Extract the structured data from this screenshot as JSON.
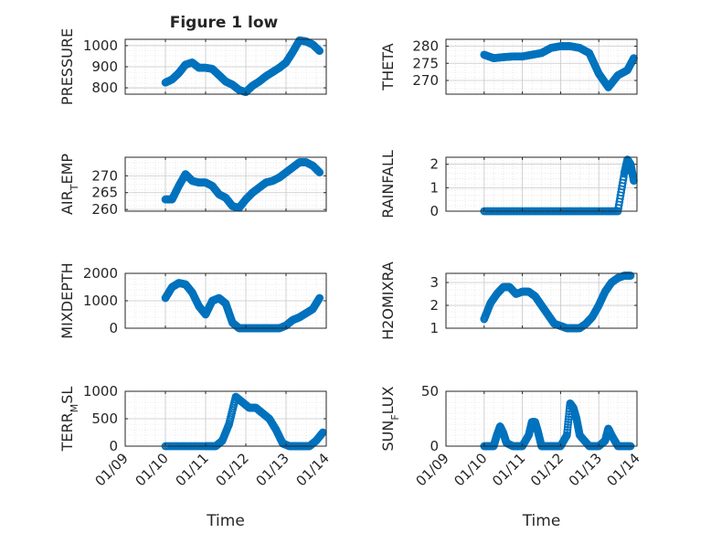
{
  "figure": {
    "title": "Figure 1 low",
    "x_tick_labels": [
      "01/09",
      "01/10",
      "01/11",
      "01/12",
      "01/13",
      "01/14"
    ],
    "x_label": "Time",
    "marker_color": "#0072bd"
  },
  "chart_data": [
    {
      "type": "scatter",
      "ylabel": "PRESSURE",
      "xlim": [
        "01/09",
        "01/14"
      ],
      "ylim": [
        770,
        1030
      ],
      "yticks": [
        800,
        900,
        1000
      ],
      "x": [
        "01/10 00:00",
        "01/10 04:00",
        "01/10 08:00",
        "01/10 12:00",
        "01/10 16:00",
        "01/10 20:00",
        "01/11 00:00",
        "01/11 04:00",
        "01/11 08:00",
        "01/11 12:00",
        "01/11 16:00",
        "01/11 20:00",
        "01/12 00:00",
        "01/12 04:00",
        "01/12 08:00",
        "01/12 12:00",
        "01/12 16:00",
        "01/12 20:00",
        "01/13 00:00",
        "01/13 04:00",
        "01/13 08:00",
        "01/13 12:00",
        "01/13 16:00",
        "01/13 20:00"
      ],
      "y": [
        825,
        840,
        870,
        910,
        920,
        895,
        895,
        890,
        860,
        830,
        815,
        790,
        780,
        810,
        830,
        855,
        875,
        895,
        920,
        970,
        1025,
        1020,
        1005,
        975
      ]
    },
    {
      "type": "scatter",
      "ylabel": "THETA",
      "xlim": [
        "01/09",
        "01/14"
      ],
      "ylim": [
        266,
        282
      ],
      "yticks": [
        270,
        275,
        280
      ],
      "x": [
        "01/10 00:00",
        "01/10 06:00",
        "01/10 12:00",
        "01/10 18:00",
        "01/11 00:00",
        "01/11 06:00",
        "01/11 12:00",
        "01/11 18:00",
        "01/12 00:00",
        "01/12 06:00",
        "01/12 12:00",
        "01/12 18:00",
        "01/13 00:00",
        "01/13 06:00",
        "01/13 12:00",
        "01/13 18:00",
        "01/13 22:00"
      ],
      "y": [
        277.5,
        276.5,
        276.8,
        277,
        277,
        277.5,
        278,
        279.5,
        280,
        280,
        279.5,
        278,
        272,
        268,
        271.5,
        273,
        276.5
      ]
    },
    {
      "type": "scatter",
      "ylabel": "AIR_TEMP",
      "xlim": [
        "01/09",
        "01/14"
      ],
      "ylim": [
        259.5,
        275.5
      ],
      "yticks": [
        260,
        265,
        270
      ],
      "x": [
        "01/10 00:00",
        "01/10 04:00",
        "01/10 08:00",
        "01/10 12:00",
        "01/10 16:00",
        "01/10 20:00",
        "01/11 00:00",
        "01/11 04:00",
        "01/11 08:00",
        "01/11 12:00",
        "01/11 16:00",
        "01/11 20:00",
        "01/12 00:00",
        "01/12 04:00",
        "01/12 08:00",
        "01/12 12:00",
        "01/12 16:00",
        "01/12 20:00",
        "01/13 00:00",
        "01/13 04:00",
        "01/13 08:00",
        "01/13 12:00",
        "01/13 16:00",
        "01/13 20:00"
      ],
      "y": [
        263,
        263,
        267,
        270.5,
        268.5,
        268,
        268,
        267,
        264.5,
        263.5,
        261,
        260.5,
        263,
        265,
        266.5,
        268,
        268.5,
        269.5,
        271,
        272.5,
        274,
        274,
        273,
        271
      ]
    },
    {
      "type": "scatter",
      "ylabel": "RAINFALL",
      "xlim": [
        "01/09",
        "01/14"
      ],
      "ylim": [
        0,
        2.3
      ],
      "yticks": [
        0,
        1,
        2
      ],
      "x": [
        "01/10 00:00",
        "01/10 12:00",
        "01/11 00:00",
        "01/11 12:00",
        "01/12 00:00",
        "01/12 12:00",
        "01/13 00:00",
        "01/13 12:00",
        "01/13 16:00",
        "01/13 18:00",
        "01/13 20:00",
        "01/13 22:00"
      ],
      "y": [
        0,
        0,
        0,
        0,
        0,
        0,
        0,
        0,
        1.6,
        2.2,
        2,
        1.3
      ]
    },
    {
      "type": "scatter",
      "ylabel": "MIXDEPTH",
      "xlim": [
        "01/09",
        "01/14"
      ],
      "ylim": [
        0,
        2000
      ],
      "yticks": [
        0,
        1000,
        2000
      ],
      "x": [
        "01/10 00:00",
        "01/10 04:00",
        "01/10 08:00",
        "01/10 12:00",
        "01/10 16:00",
        "01/10 20:00",
        "01/11 00:00",
        "01/11 04:00",
        "01/11 08:00",
        "01/11 12:00",
        "01/11 16:00",
        "01/11 20:00",
        "01/12 00:00",
        "01/12 04:00",
        "01/12 08:00",
        "01/12 12:00",
        "01/12 16:00",
        "01/12 20:00",
        "01/13 00:00",
        "01/13 04:00",
        "01/13 08:00",
        "01/13 12:00",
        "01/13 16:00",
        "01/13 20:00"
      ],
      "y": [
        1100,
        1500,
        1650,
        1600,
        1300,
        800,
        500,
        1000,
        1100,
        900,
        200,
        0,
        0,
        0,
        0,
        0,
        0,
        0,
        100,
        300,
        400,
        550,
        700,
        1100
      ]
    },
    {
      "type": "scatter",
      "ylabel": "H2OMIXRA",
      "xlim": [
        "01/09",
        "01/14"
      ],
      "ylim": [
        1,
        3.4
      ],
      "yticks": [
        1,
        2,
        3
      ],
      "x": [
        "01/10 00:00",
        "01/10 04:00",
        "01/10 08:00",
        "01/10 12:00",
        "01/10 16:00",
        "01/10 20:00",
        "01/11 00:00",
        "01/11 04:00",
        "01/11 08:00",
        "01/11 12:00",
        "01/11 16:00",
        "01/11 20:00",
        "01/12 00:00",
        "01/12 04:00",
        "01/12 08:00",
        "01/12 12:00",
        "01/12 16:00",
        "01/12 20:00",
        "01/13 00:00",
        "01/13 04:00",
        "01/13 08:00",
        "01/13 12:00",
        "01/13 16:00",
        "01/13 20:00"
      ],
      "y": [
        1.4,
        2.1,
        2.5,
        2.8,
        2.8,
        2.5,
        2.6,
        2.6,
        2.4,
        2,
        1.6,
        1.2,
        1.1,
        1,
        1,
        1,
        1.2,
        1.5,
        2,
        2.6,
        3,
        3.2,
        3.3,
        3.3
      ]
    },
    {
      "type": "scatter",
      "ylabel": "TERR_MSL",
      "xlim": [
        "01/09",
        "01/14"
      ],
      "ylim": [
        0,
        1000
      ],
      "yticks": [
        0,
        500,
        1000
      ],
      "x": [
        "01/10 00:00",
        "01/10 12:00",
        "01/11 00:00",
        "01/11 06:00",
        "01/11 10:00",
        "01/11 14:00",
        "01/11 18:00",
        "01/11 22:00",
        "01/12 02:00",
        "01/12 06:00",
        "01/12 10:00",
        "01/12 14:00",
        "01/12 18:00",
        "01/12 22:00",
        "01/13 02:00",
        "01/13 06:00",
        "01/13 10:00",
        "01/13 14:00",
        "01/13 18:00",
        "01/13 22:00"
      ],
      "y": [
        0,
        0,
        0,
        0,
        100,
        400,
        900,
        800,
        700,
        700,
        600,
        500,
        300,
        50,
        0,
        0,
        0,
        0,
        100,
        250
      ]
    },
    {
      "type": "scatter",
      "ylabel": "SUN_FLUX",
      "xlim": [
        "01/09",
        "01/14"
      ],
      "ylim": [
        0,
        50
      ],
      "yticks": [
        0,
        50
      ],
      "x": [
        "01/10 00:00",
        "01/10 06:00",
        "01/10 08:00",
        "01/10 10:00",
        "01/10 12:00",
        "01/10 14:00",
        "01/10 18:00",
        "01/11 00:00",
        "01/11 04:00",
        "01/11 06:00",
        "01/11 08:00",
        "01/11 10:00",
        "01/11 12:00",
        "01/11 18:00",
        "01/12 00:00",
        "01/12 04:00",
        "01/12 06:00",
        "01/12 08:00",
        "01/12 10:00",
        "01/12 12:00",
        "01/12 18:00",
        "01/13 00:00",
        "01/13 04:00",
        "01/13 06:00",
        "01/13 08:00",
        "01/13 12:00",
        "01/13 20:00"
      ],
      "y": [
        0,
        0,
        10,
        18,
        12,
        3,
        0,
        0,
        10,
        22,
        22,
        12,
        0,
        0,
        0,
        10,
        39,
        35,
        25,
        10,
        0,
        0,
        5,
        16,
        10,
        0,
        0
      ]
    }
  ]
}
